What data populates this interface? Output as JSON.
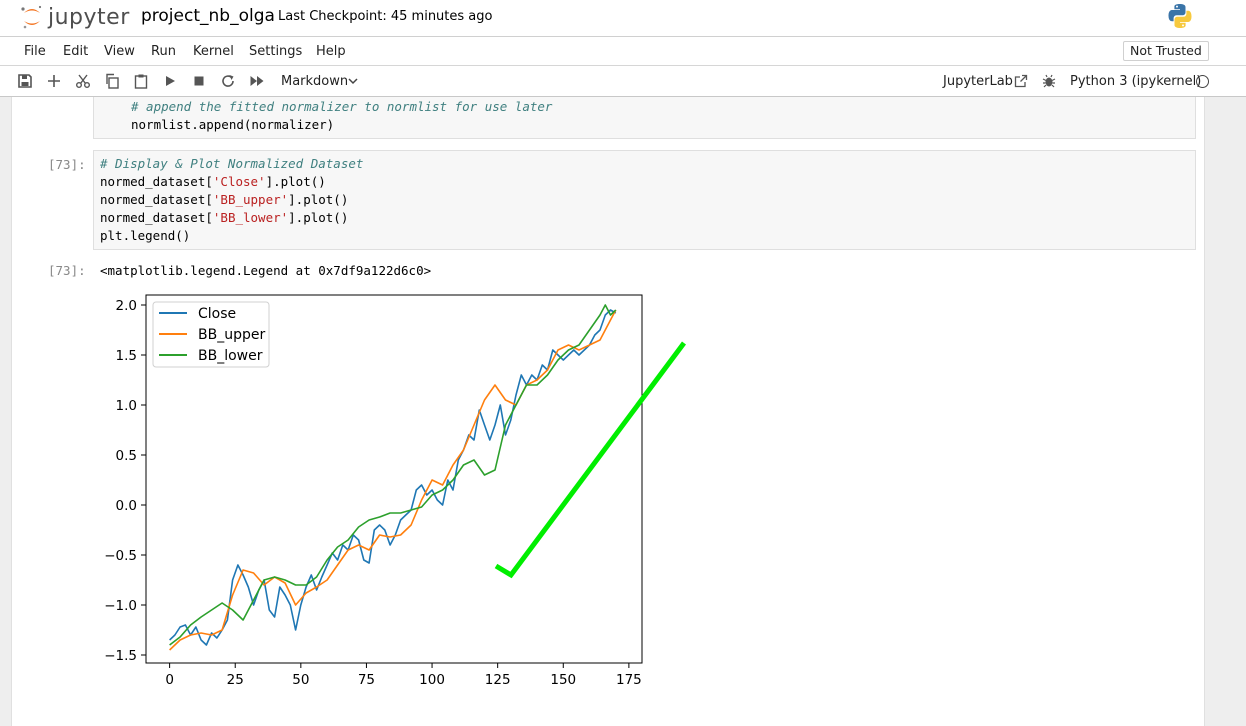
{
  "header": {
    "app_name": "jupyter",
    "notebook_title": "project_nb_olga",
    "checkpoint": "Last Checkpoint: 45 minutes ago"
  },
  "menu": {
    "items": [
      "File",
      "Edit",
      "View",
      "Run",
      "Kernel",
      "Settings",
      "Help"
    ],
    "trust_status": "Not Trusted"
  },
  "toolbar": {
    "cell_type": "Markdown",
    "jupyterlab_link": "JupyterLab",
    "kernel": "Python 3 (ipykernel)"
  },
  "cells": {
    "prev_cell_lines": [
      "# append the fitted normalizer to normlist for use later",
      "normlist.append(normalizer)"
    ],
    "input_prompt": "[73]:",
    "output_prompt": "[73]:",
    "code_lines": {
      "l1": "# Display & Plot Normalized Dataset",
      "l2a": "normed_dataset[",
      "l2s": "'Close'",
      "l2b": "].plot()",
      "l3a": "normed_dataset[",
      "l3s": "'BB_upper'",
      "l3b": "].plot()",
      "l4a": "normed_dataset[",
      "l4s": "'BB_lower'",
      "l4b": "].plot()",
      "l5": "plt.legend()"
    },
    "output_text": "<matplotlib.legend.Legend at 0x7df9a122d6c0>"
  },
  "colors": {
    "close": "#1f77b4",
    "bb_upper": "#ff7f0e",
    "bb_lower": "#2ca02c",
    "annotation": "#00ee00"
  },
  "chart_data": {
    "type": "line",
    "title": "",
    "xlabel": "",
    "ylabel": "",
    "xlim": [
      -9,
      180
    ],
    "ylim": [
      -1.58,
      2.1
    ],
    "xticks": [
      "0",
      "25",
      "50",
      "75",
      "100",
      "125",
      "150",
      "175"
    ],
    "yticks": [
      "-1.5",
      "-1.0",
      "-0.5",
      "0.0",
      "0.5",
      "1.0",
      "1.5",
      "2.0"
    ],
    "legend_position": "upper-left",
    "grid": false,
    "series": [
      {
        "name": "Close",
        "color": "#1f77b4",
        "points": [
          [
            0,
            -1.35
          ],
          [
            2,
            -1.3
          ],
          [
            4,
            -1.22
          ],
          [
            6,
            -1.2
          ],
          [
            8,
            -1.3
          ],
          [
            10,
            -1.22
          ],
          [
            12,
            -1.35
          ],
          [
            14,
            -1.4
          ],
          [
            16,
            -1.28
          ],
          [
            18,
            -1.33
          ],
          [
            20,
            -1.25
          ],
          [
            22,
            -1.15
          ],
          [
            24,
            -0.75
          ],
          [
            26,
            -0.6
          ],
          [
            28,
            -0.7
          ],
          [
            30,
            -0.82
          ],
          [
            32,
            -1.0
          ],
          [
            34,
            -0.85
          ],
          [
            36,
            -0.75
          ],
          [
            38,
            -1.05
          ],
          [
            40,
            -1.12
          ],
          [
            42,
            -0.82
          ],
          [
            44,
            -0.9
          ],
          [
            46,
            -1.0
          ],
          [
            48,
            -1.25
          ],
          [
            50,
            -1.0
          ],
          [
            52,
            -0.82
          ],
          [
            54,
            -0.7
          ],
          [
            56,
            -0.85
          ],
          [
            58,
            -0.72
          ],
          [
            60,
            -0.6
          ],
          [
            62,
            -0.48
          ],
          [
            64,
            -0.55
          ],
          [
            66,
            -0.4
          ],
          [
            68,
            -0.45
          ],
          [
            70,
            -0.3
          ],
          [
            72,
            -0.35
          ],
          [
            74,
            -0.55
          ],
          [
            76,
            -0.58
          ],
          [
            78,
            -0.25
          ],
          [
            80,
            -0.2
          ],
          [
            82,
            -0.25
          ],
          [
            84,
            -0.4
          ],
          [
            86,
            -0.3
          ],
          [
            88,
            -0.15
          ],
          [
            90,
            -0.1
          ],
          [
            92,
            -0.05
          ],
          [
            94,
            0.15
          ],
          [
            96,
            0.2
          ],
          [
            98,
            0.1
          ],
          [
            100,
            0.15
          ],
          [
            102,
            0.05
          ],
          [
            104,
            0.0
          ],
          [
            106,
            0.25
          ],
          [
            108,
            0.15
          ],
          [
            110,
            0.45
          ],
          [
            112,
            0.55
          ],
          [
            114,
            0.7
          ],
          [
            116,
            0.65
          ],
          [
            118,
            0.95
          ],
          [
            120,
            0.8
          ],
          [
            122,
            0.65
          ],
          [
            124,
            0.8
          ],
          [
            126,
            1.0
          ],
          [
            128,
            0.7
          ],
          [
            130,
            0.85
          ],
          [
            132,
            1.1
          ],
          [
            134,
            1.3
          ],
          [
            136,
            1.2
          ],
          [
            138,
            1.3
          ],
          [
            140,
            1.25
          ],
          [
            142,
            1.4
          ],
          [
            144,
            1.35
          ],
          [
            146,
            1.55
          ],
          [
            148,
            1.5
          ],
          [
            150,
            1.45
          ],
          [
            152,
            1.5
          ],
          [
            154,
            1.55
          ],
          [
            156,
            1.5
          ],
          [
            158,
            1.55
          ],
          [
            160,
            1.6
          ],
          [
            162,
            1.7
          ],
          [
            164,
            1.75
          ],
          [
            166,
            1.9
          ],
          [
            168,
            1.95
          ],
          [
            170,
            1.92
          ]
        ]
      },
      {
        "name": "BB_upper",
        "color": "#ff7f0e",
        "points": [
          [
            0,
            -1.45
          ],
          [
            4,
            -1.35
          ],
          [
            8,
            -1.3
          ],
          [
            12,
            -1.28
          ],
          [
            16,
            -1.3
          ],
          [
            20,
            -1.25
          ],
          [
            24,
            -0.9
          ],
          [
            28,
            -0.65
          ],
          [
            32,
            -0.68
          ],
          [
            36,
            -0.8
          ],
          [
            40,
            -0.72
          ],
          [
            44,
            -0.78
          ],
          [
            48,
            -1.0
          ],
          [
            52,
            -0.88
          ],
          [
            56,
            -0.82
          ],
          [
            60,
            -0.75
          ],
          [
            64,
            -0.6
          ],
          [
            68,
            -0.45
          ],
          [
            72,
            -0.4
          ],
          [
            76,
            -0.45
          ],
          [
            80,
            -0.3
          ],
          [
            84,
            -0.32
          ],
          [
            88,
            -0.3
          ],
          [
            92,
            -0.2
          ],
          [
            96,
            0.05
          ],
          [
            100,
            0.25
          ],
          [
            104,
            0.2
          ],
          [
            108,
            0.4
          ],
          [
            112,
            0.55
          ],
          [
            116,
            0.8
          ],
          [
            120,
            1.05
          ],
          [
            124,
            1.2
          ],
          [
            128,
            1.05
          ],
          [
            132,
            1.0
          ],
          [
            136,
            1.2
          ],
          [
            140,
            1.25
          ],
          [
            144,
            1.35
          ],
          [
            148,
            1.55
          ],
          [
            152,
            1.6
          ],
          [
            156,
            1.55
          ],
          [
            160,
            1.6
          ],
          [
            164,
            1.65
          ],
          [
            168,
            1.85
          ],
          [
            170,
            1.95
          ]
        ]
      },
      {
        "name": "BB_lower",
        "color": "#2ca02c",
        "points": [
          [
            0,
            -1.4
          ],
          [
            4,
            -1.32
          ],
          [
            8,
            -1.2
          ],
          [
            12,
            -1.12
          ],
          [
            16,
            -1.05
          ],
          [
            20,
            -0.98
          ],
          [
            24,
            -1.05
          ],
          [
            28,
            -1.15
          ],
          [
            32,
            -0.95
          ],
          [
            36,
            -0.75
          ],
          [
            40,
            -0.72
          ],
          [
            44,
            -0.75
          ],
          [
            48,
            -0.8
          ],
          [
            52,
            -0.8
          ],
          [
            56,
            -0.72
          ],
          [
            60,
            -0.55
          ],
          [
            64,
            -0.42
          ],
          [
            68,
            -0.35
          ],
          [
            72,
            -0.22
          ],
          [
            76,
            -0.15
          ],
          [
            80,
            -0.12
          ],
          [
            84,
            -0.08
          ],
          [
            88,
            -0.08
          ],
          [
            92,
            -0.05
          ],
          [
            96,
            -0.02
          ],
          [
            100,
            0.1
          ],
          [
            104,
            0.15
          ],
          [
            108,
            0.25
          ],
          [
            112,
            0.4
          ],
          [
            116,
            0.45
          ],
          [
            120,
            0.3
          ],
          [
            124,
            0.35
          ],
          [
            128,
            0.8
          ],
          [
            132,
            1.0
          ],
          [
            136,
            1.2
          ],
          [
            140,
            1.2
          ],
          [
            144,
            1.3
          ],
          [
            148,
            1.45
          ],
          [
            152,
            1.55
          ],
          [
            156,
            1.6
          ],
          [
            160,
            1.75
          ],
          [
            164,
            1.9
          ],
          [
            166,
            2.0
          ],
          [
            168,
            1.9
          ],
          [
            170,
            1.95
          ]
        ]
      }
    ]
  }
}
